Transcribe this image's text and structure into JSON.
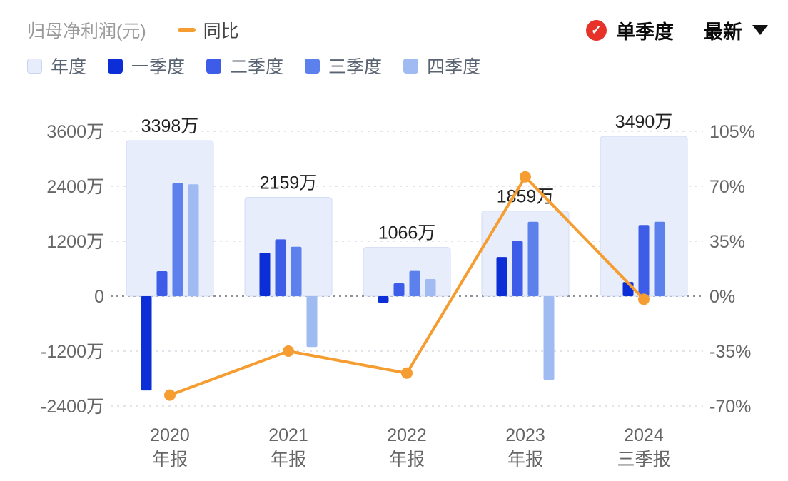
{
  "header": {
    "title": "归母净利润(元)",
    "line_series_label": "同比",
    "mode_label": "单季度",
    "latest_label": "最新",
    "check_glyph": "✓",
    "badge_color": "#e63229"
  },
  "legend": [
    {
      "label": "年度",
      "swatch": "#e8edfb",
      "border": "#c9d4f2"
    },
    {
      "label": "一季度",
      "swatch": "#0b2ed6"
    },
    {
      "label": "二季度",
      "swatch": "#3d5de8"
    },
    {
      "label": "三季度",
      "swatch": "#5c80ec"
    },
    {
      "label": "四季度",
      "swatch": "#9fbbf2"
    }
  ],
  "chart_data": {
    "type": "bar+line",
    "title": "归母净利润(元)",
    "unit": "万",
    "categories": [
      [
        "2020",
        "年报"
      ],
      [
        "2021",
        "年报"
      ],
      [
        "2022",
        "年报"
      ],
      [
        "2023",
        "年报"
      ],
      [
        "2024",
        "三季报"
      ]
    ],
    "annual": {
      "name": "年度",
      "color": "#e8edfb",
      "border": "#d3dcf5",
      "values": [
        3398,
        2159,
        1066,
        1859,
        3490
      ],
      "labels": [
        "3398万",
        "2159万",
        "1066万",
        "1859万",
        "3490万"
      ]
    },
    "series": [
      {
        "name": "一季度",
        "color": "#0b2ed6",
        "values": [
          -2060,
          950,
          -140,
          855,
          310
        ]
      },
      {
        "name": "二季度",
        "color": "#3d5de8",
        "values": [
          545,
          1240,
          280,
          1205,
          1555
        ]
      },
      {
        "name": "三季度",
        "color": "#5c80ec",
        "values": [
          2470,
          1080,
          551,
          1625,
          1625
        ]
      },
      {
        "name": "四季度",
        "color": "#9fbbf2",
        "values": [
          2443,
          -1111,
          375,
          -1826,
          null
        ]
      }
    ],
    "line": {
      "name": "同比",
      "color": "#f59d30",
      "values": [
        -63,
        -35,
        -49,
        76,
        -2
      ],
      "unit": "%"
    },
    "y_left": {
      "tick_values": [
        3600,
        2400,
        1200,
        0,
        -1200,
        -2400
      ],
      "tick_labels": [
        "3600万",
        "2400万",
        "1200万",
        "0",
        "-1200万",
        "-2400万"
      ],
      "ylim": [
        -2400,
        3600
      ]
    },
    "y_right": {
      "tick_values": [
        105,
        70,
        35,
        0,
        -35,
        -70
      ],
      "tick_labels": [
        "105%",
        "70%",
        "35%",
        "0%",
        "-35%",
        "-70%"
      ],
      "ylim": [
        -70,
        105
      ]
    },
    "grid": "dashed-horizontal",
    "legend_position": "top-left"
  }
}
